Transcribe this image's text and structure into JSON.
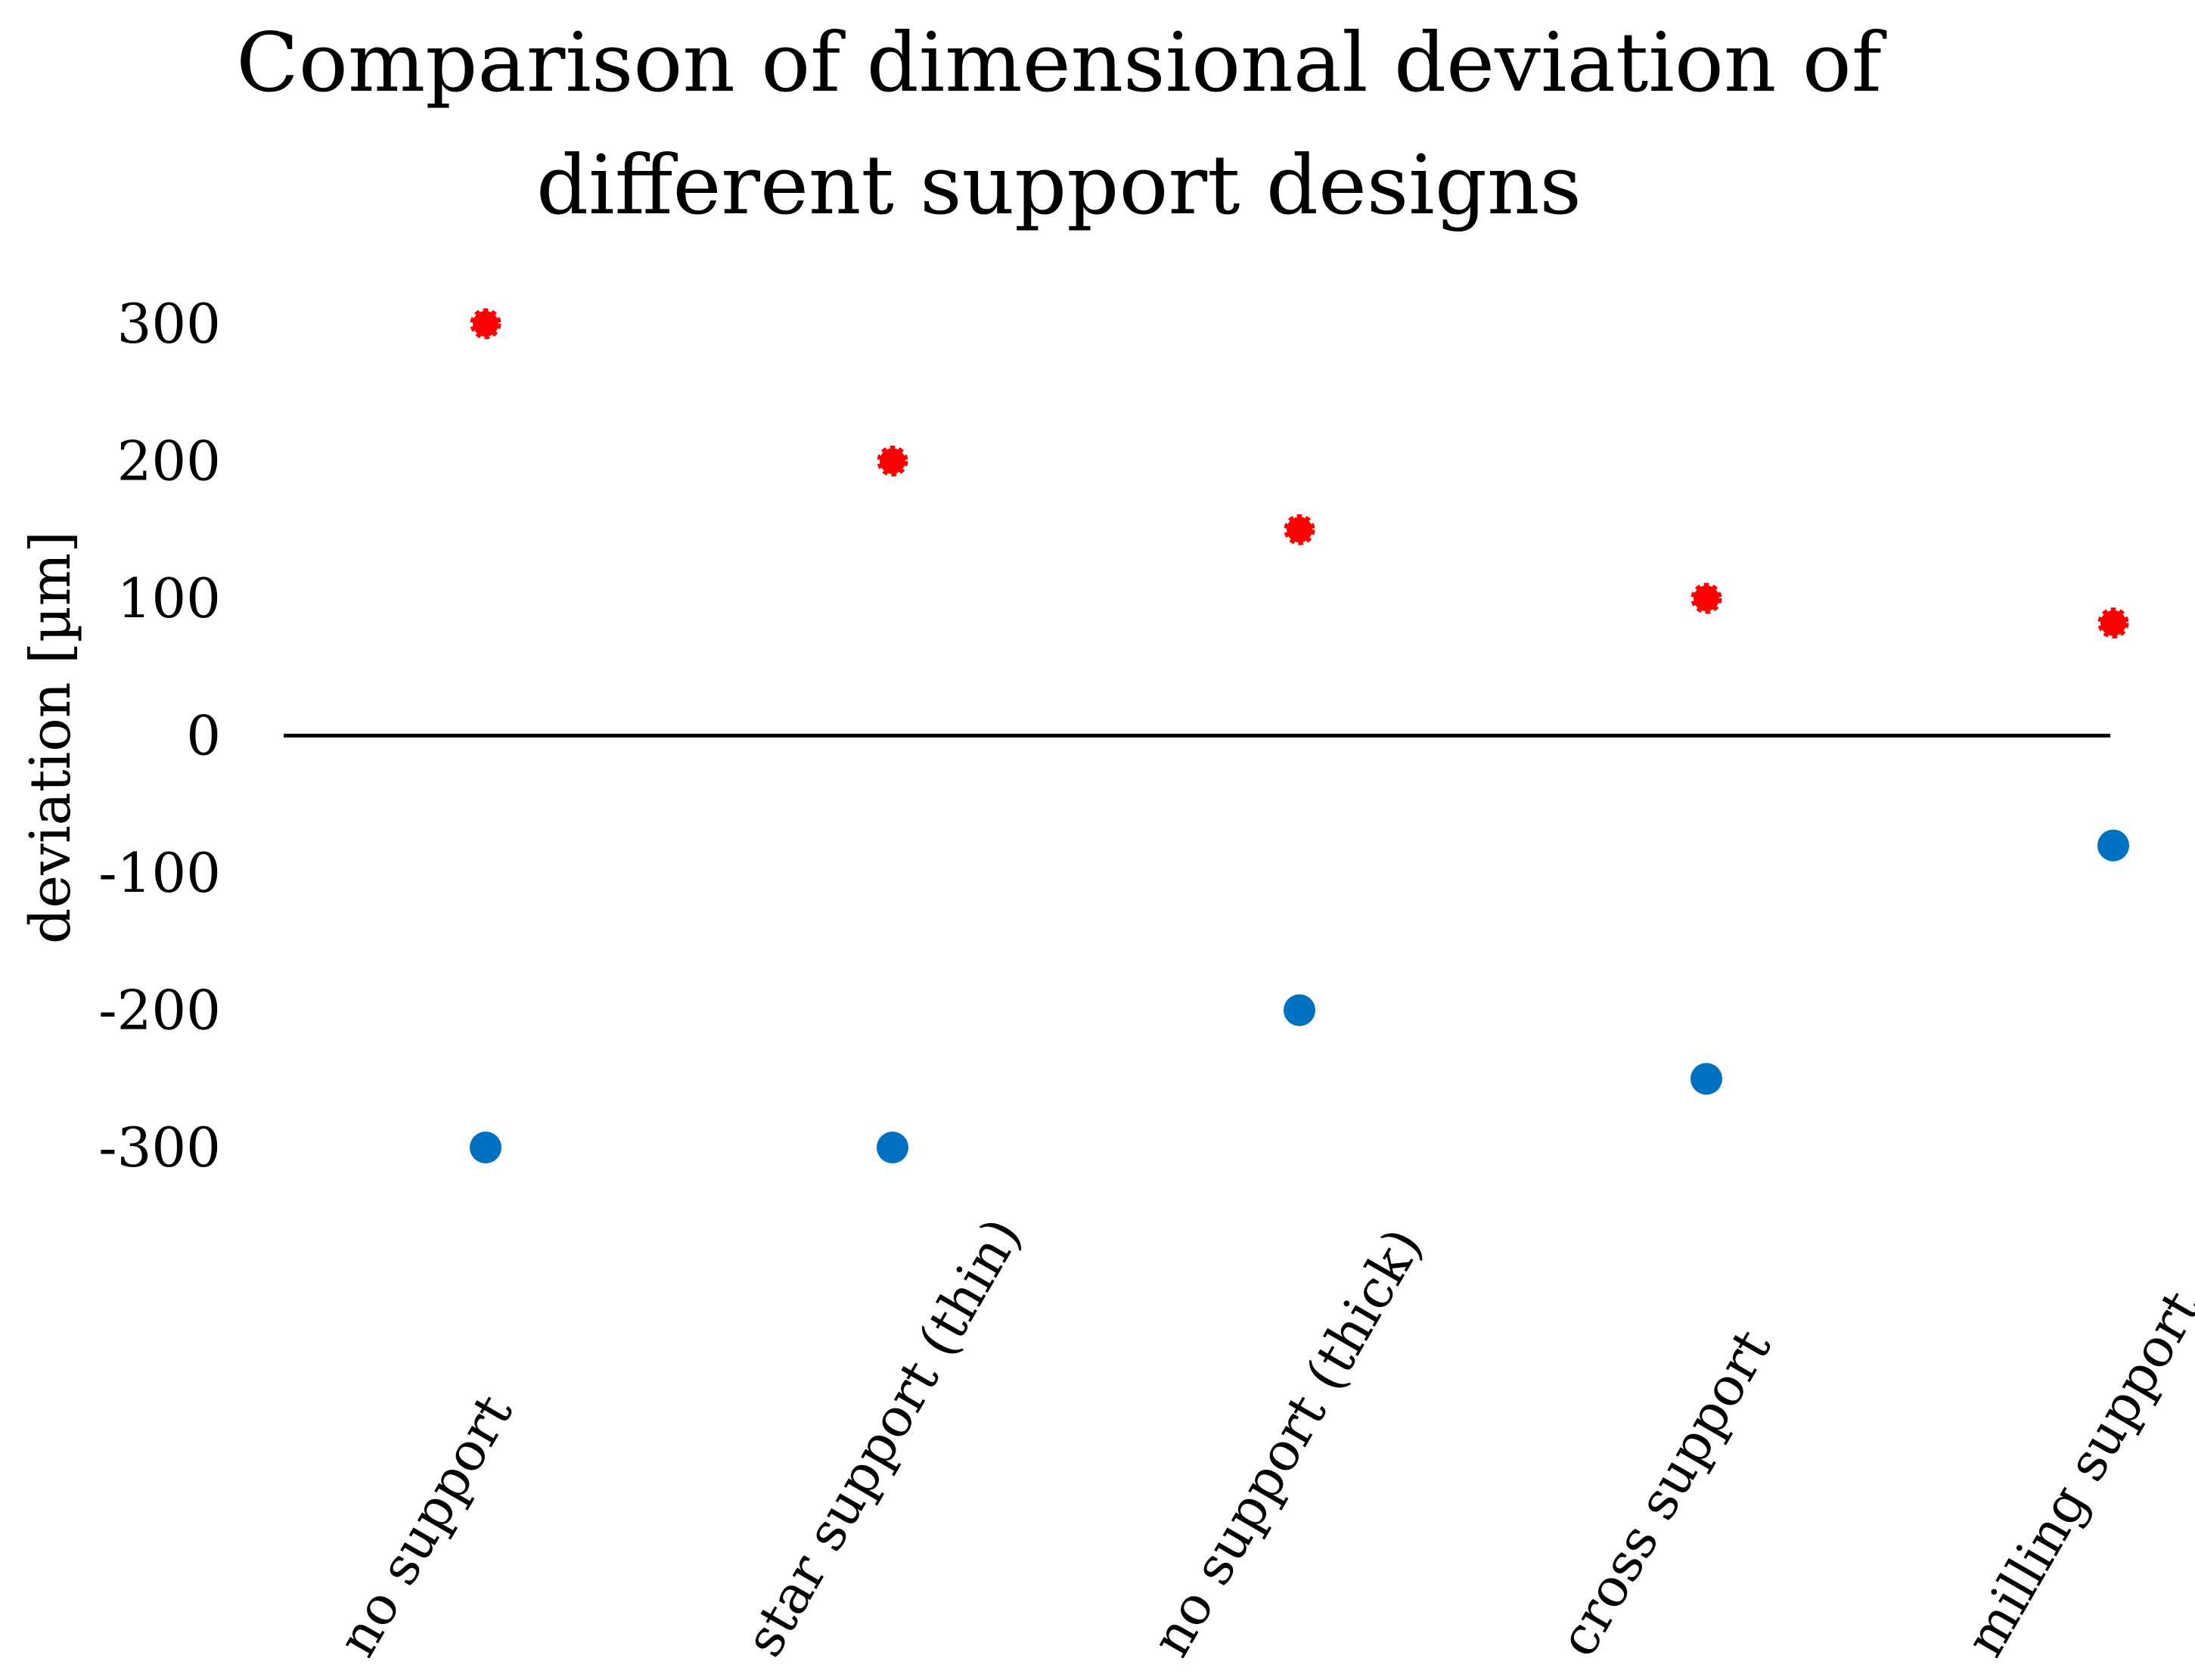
{
  "chart_data": {
    "type": "scatter",
    "title_lines": [
      "Comparison of dimensional deviation of",
      "different support designs"
    ],
    "xlabel": "",
    "ylabel": "deviation [µm]",
    "categories": [
      "no support",
      "star support (thin)",
      "no support (thick)",
      "cross support",
      "milling support"
    ],
    "y_ticks": [
      300,
      200,
      100,
      0,
      -100,
      -200,
      -300
    ],
    "ylim": [
      -300,
      300
    ],
    "grid": false,
    "legend": "none",
    "series": [
      {
        "color": "#ff0000",
        "marker": "circle-dashed",
        "values": [
          300,
          200,
          150,
          100,
          82
        ]
      },
      {
        "color": "#0070c0",
        "marker": "circle",
        "values": [
          -300,
          -300,
          -200,
          -250,
          -80
        ]
      }
    ]
  }
}
